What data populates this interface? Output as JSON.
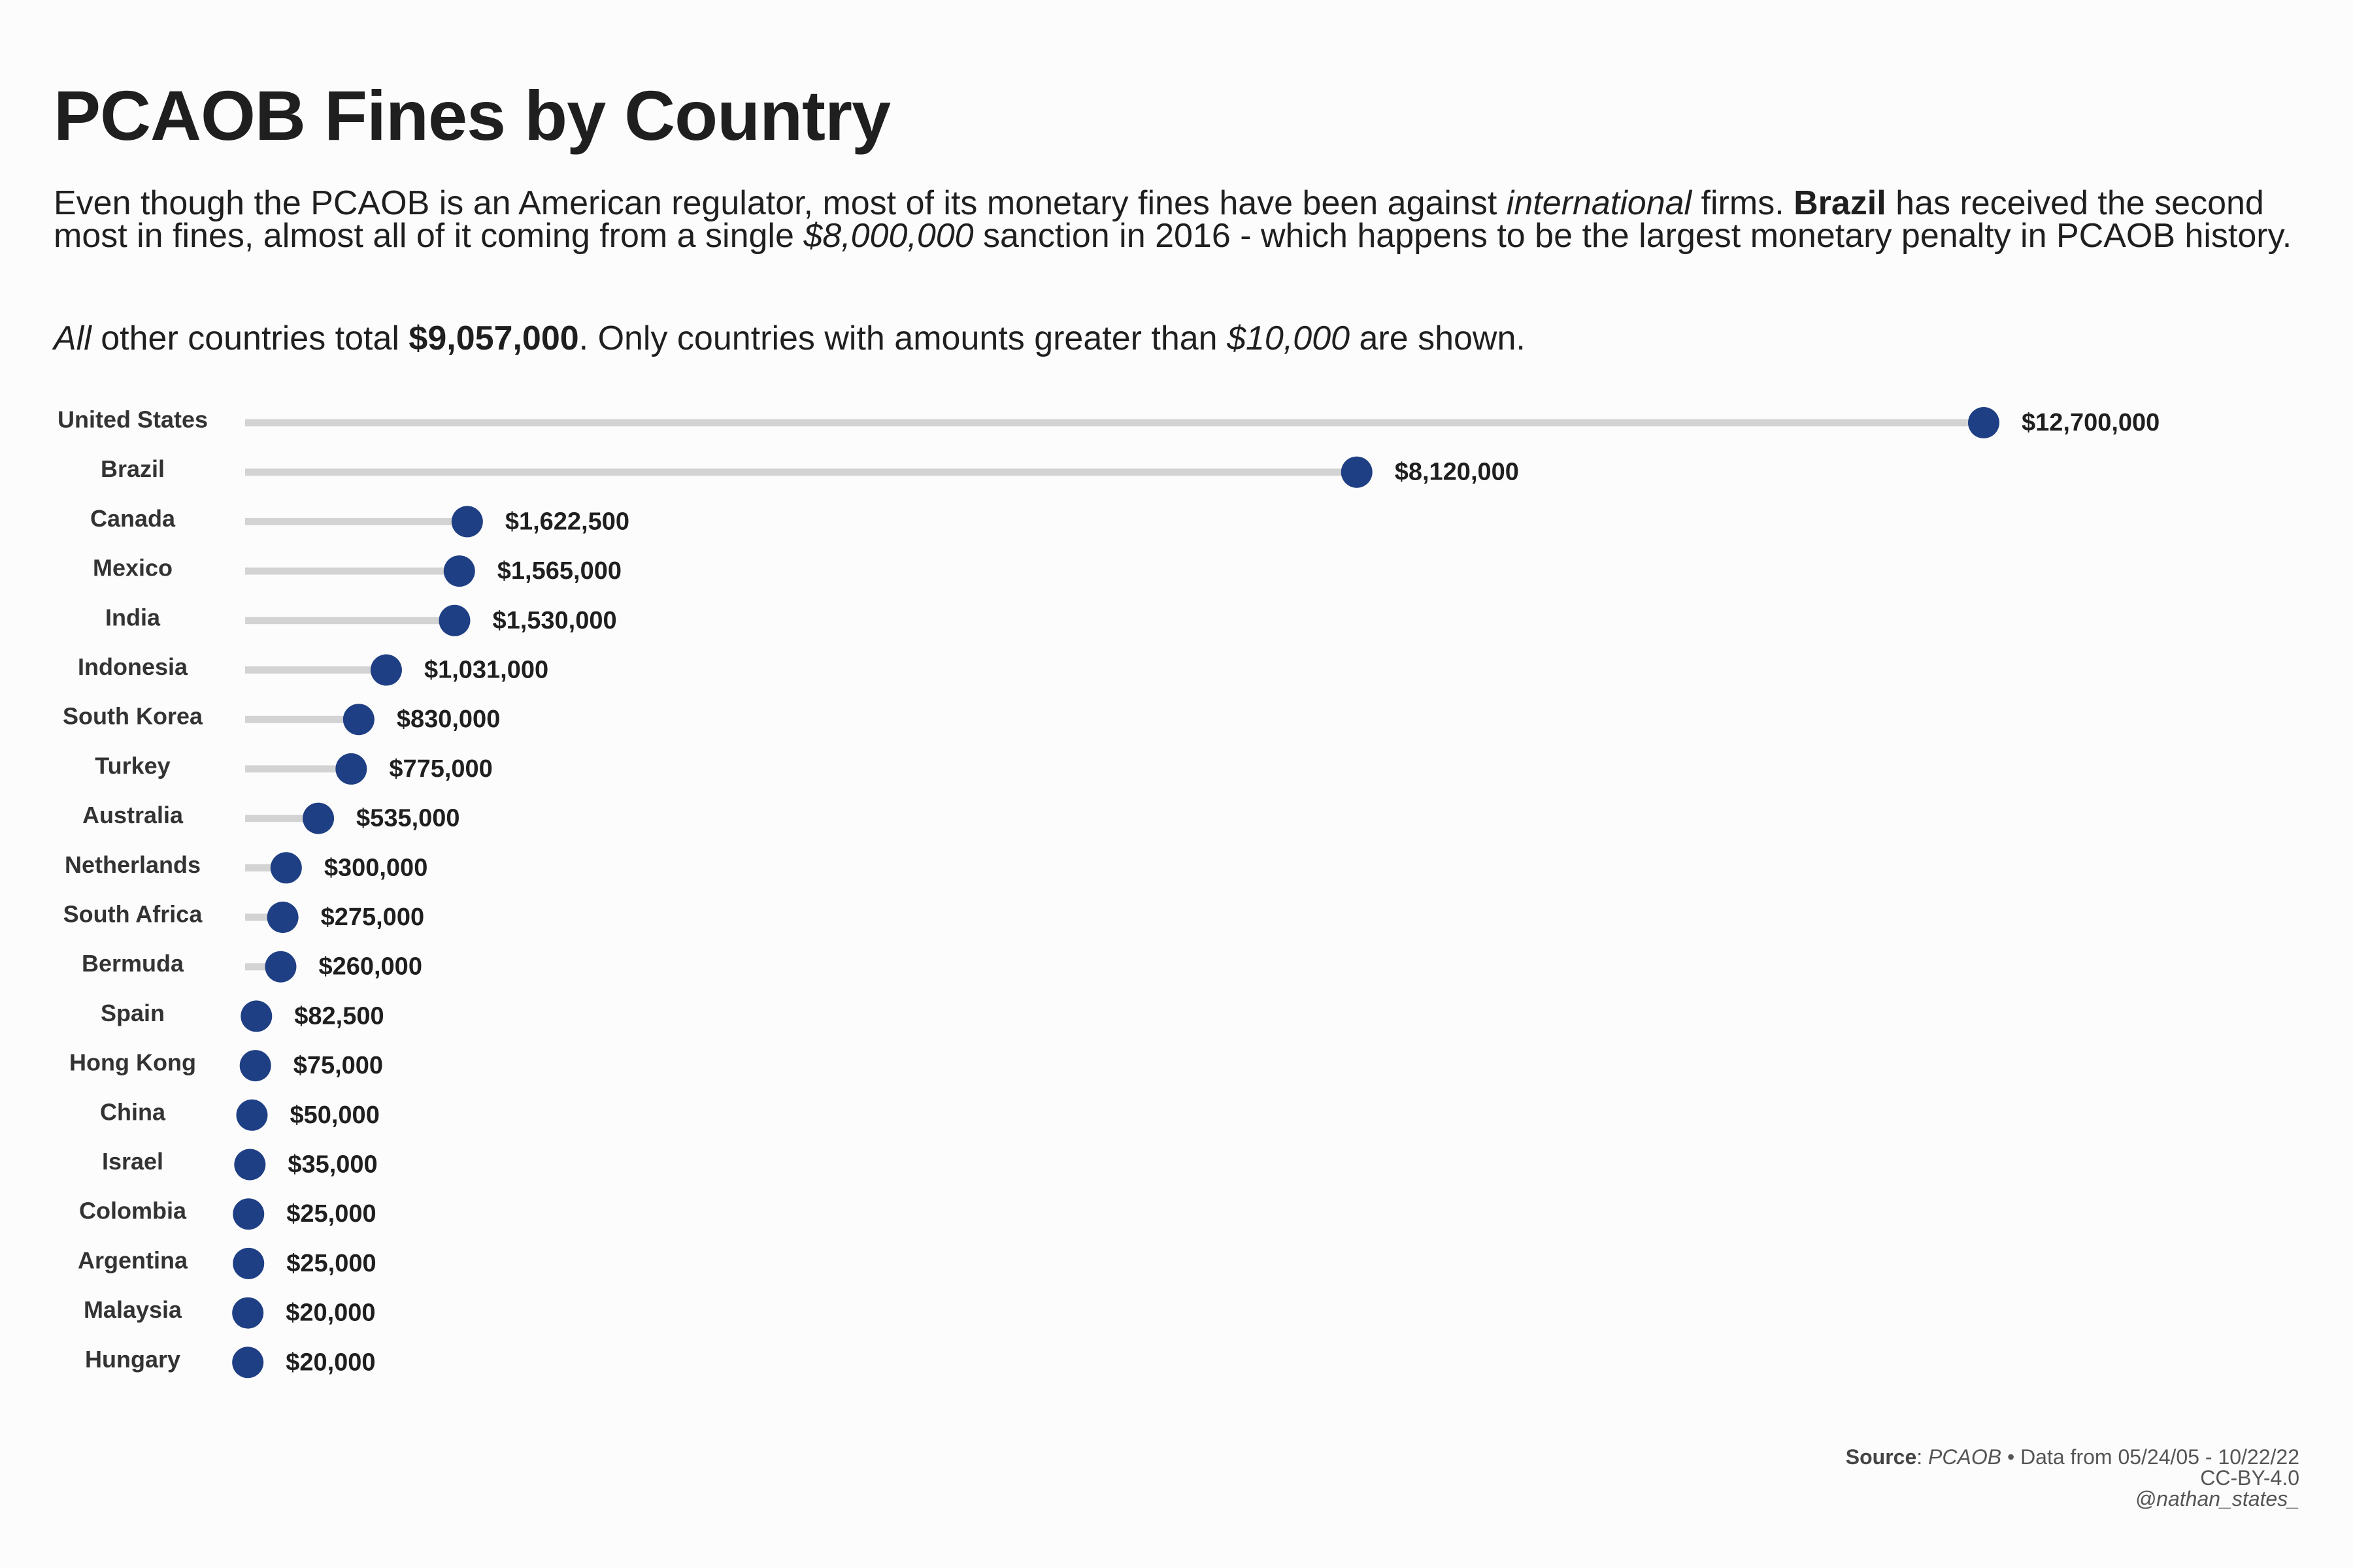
{
  "title": "PCAOB Fines by Country",
  "subtitle": {
    "part1": "Even though the PCAOB is an American regulator, most of its monetary fines have been against ",
    "italic1": "international",
    "part2": " firms. ",
    "bold1": "Brazil",
    "part3": " has received the second most in fines, almost all of it coming from a single ",
    "italic2": "$8,000,000",
    "part4": " sanction in 2016 - which happens to be the largest monetary penalty in PCAOB history."
  },
  "subtitle2": {
    "italic1": "All",
    "part1": " other countries total ",
    "bold1": "$9,057,000",
    "part2": ". Only countries with amounts greater than ",
    "italic2": "$10,000",
    "part3": " are shown."
  },
  "chart_data": {
    "type": "lollipop",
    "title": "PCAOB Fines by Country",
    "categories": [
      "United States",
      "Brazil",
      "Canada",
      "Mexico",
      "India",
      "Indonesia",
      "South Korea",
      "Turkey",
      "Australia",
      "Netherlands",
      "South Africa",
      "Bermuda",
      "Spain",
      "Hong Kong",
      "China",
      "Israel",
      "Colombia",
      "Argentina",
      "Malaysia",
      "Hungary"
    ],
    "values": [
      12700000,
      8120000,
      1622500,
      1565000,
      1530000,
      1031000,
      830000,
      775000,
      535000,
      300000,
      275000,
      260000,
      82500,
      75000,
      50000,
      35000,
      25000,
      25000,
      20000,
      20000
    ],
    "value_labels": [
      "$12,700,000",
      "$8,120,000",
      "$1,622,500",
      "$1,565,000",
      "$1,530,000",
      "$1,031,000",
      "$830,000",
      "$775,000",
      "$535,000",
      "$300,000",
      "$275,000",
      "$260,000",
      "$82,500",
      "$75,000",
      "$50,000",
      "$35,000",
      "$25,000",
      "$25,000",
      "$20,000",
      "$20,000"
    ],
    "xlim": [
      0,
      12700000
    ],
    "grid": false,
    "legend": "none",
    "colors": {
      "dot": "#1f3f84",
      "stem": "#d3d3d3"
    }
  },
  "footer": {
    "source_label": "Source",
    "source_name": "PCAOB",
    "date_range": " • Data from 05/24/05 - 10/22/22",
    "license": "CC-BY-4.0",
    "handle": "@nathan_states_"
  }
}
